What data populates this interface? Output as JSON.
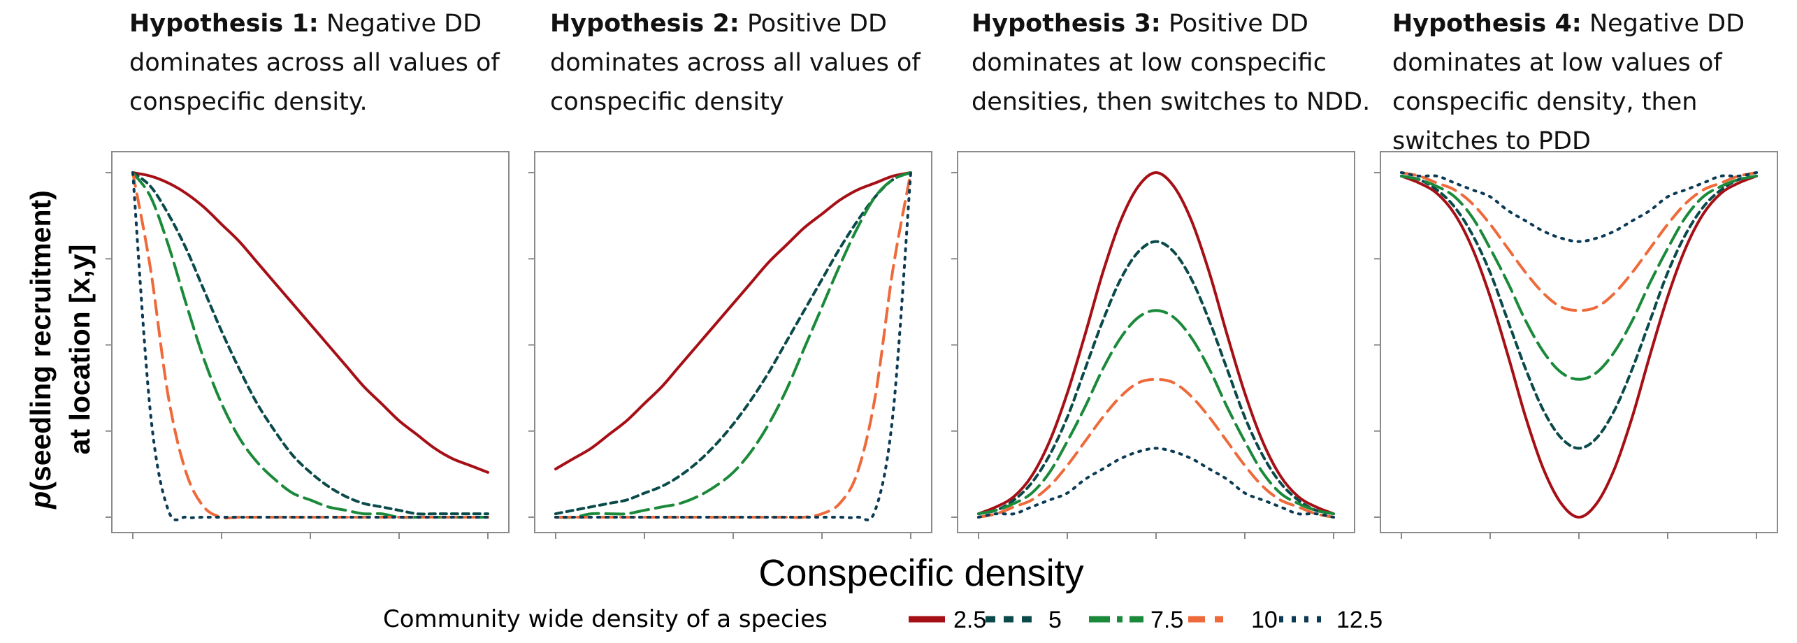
{
  "chart_data": [
    {
      "type": "line",
      "title_bold": "Hypothesis 1:",
      "title_rest": "Negative DD dominates across all values of conspecific density.",
      "xlabel": "Conspecific density",
      "ylabel_prefix": "p",
      "ylabel_rest": "(seedling recruitment)",
      "ylabel_line2": "at location [x,y]",
      "x": [
        0,
        0.05,
        0.1,
        0.15,
        0.2,
        0.25,
        0.3,
        0.35,
        0.4,
        0.45,
        0.5,
        0.55,
        0.6,
        0.65,
        0.7,
        0.75,
        0.8,
        0.85,
        0.9,
        0.95,
        1
      ],
      "series": [
        {
          "name": "2.5",
          "values": [
            1.0,
            0.99,
            0.97,
            0.94,
            0.9,
            0.85,
            0.8,
            0.74,
            0.68,
            0.62,
            0.56,
            0.5,
            0.44,
            0.38,
            0.33,
            0.28,
            0.24,
            0.2,
            0.17,
            0.15,
            0.13
          ]
        },
        {
          "name": "5",
          "values": [
            1.0,
            0.96,
            0.88,
            0.78,
            0.66,
            0.54,
            0.43,
            0.33,
            0.25,
            0.18,
            0.13,
            0.09,
            0.06,
            0.04,
            0.03,
            0.02,
            0.01,
            0.01,
            0.01,
            0.01,
            0.01
          ]
        },
        {
          "name": "7.5",
          "values": [
            1.0,
            0.93,
            0.79,
            0.62,
            0.46,
            0.33,
            0.23,
            0.16,
            0.11,
            0.07,
            0.05,
            0.03,
            0.02,
            0.01,
            0.01,
            0.0,
            0.0,
            0.0,
            0.0,
            0.0,
            0.0
          ]
        },
        {
          "name": "10",
          "values": [
            1.0,
            0.72,
            0.35,
            0.13,
            0.03,
            0.0,
            0.0,
            0.0,
            0.0,
            0.0,
            0.0,
            0.0,
            0.0,
            0.0,
            0.0,
            0.0,
            0.0,
            0.0,
            0.0,
            0.0,
            0.0
          ]
        },
        {
          "name": "12.5",
          "values": [
            1.0,
            0.3,
            0.02,
            0.0,
            0.0,
            0.0,
            0.0,
            0.0,
            0.0,
            0.0,
            0.0,
            0.0,
            0.0,
            0.0,
            0.0,
            0.0,
            0.0,
            0.0,
            0.0,
            0.0,
            0.0
          ]
        }
      ]
    },
    {
      "type": "line",
      "title_bold": "Hypothesis 2:",
      "title_rest": "Positive DD dominates across all values of conspecific density",
      "x": [
        0,
        0.05,
        0.1,
        0.15,
        0.2,
        0.25,
        0.3,
        0.35,
        0.4,
        0.45,
        0.5,
        0.55,
        0.6,
        0.65,
        0.7,
        0.75,
        0.8,
        0.85,
        0.9,
        0.95,
        1
      ],
      "series": [
        {
          "name": "2.5",
          "values": [
            0.14,
            0.17,
            0.2,
            0.24,
            0.28,
            0.33,
            0.38,
            0.44,
            0.5,
            0.56,
            0.62,
            0.68,
            0.74,
            0.79,
            0.84,
            0.88,
            0.92,
            0.95,
            0.97,
            0.99,
            1.0
          ]
        },
        {
          "name": "5",
          "values": [
            0.01,
            0.02,
            0.03,
            0.04,
            0.05,
            0.07,
            0.09,
            0.12,
            0.16,
            0.21,
            0.27,
            0.34,
            0.42,
            0.51,
            0.6,
            0.69,
            0.78,
            0.86,
            0.93,
            0.98,
            1.0
          ]
        },
        {
          "name": "7.5",
          "values": [
            0.0,
            0.0,
            0.01,
            0.01,
            0.01,
            0.02,
            0.03,
            0.04,
            0.06,
            0.09,
            0.13,
            0.19,
            0.27,
            0.37,
            0.49,
            0.61,
            0.73,
            0.84,
            0.93,
            0.98,
            1.0
          ]
        },
        {
          "name": "10",
          "values": [
            0.0,
            0.0,
            0.0,
            0.0,
            0.0,
            0.0,
            0.0,
            0.0,
            0.0,
            0.0,
            0.0,
            0.0,
            0.0,
            0.0,
            0.0,
            0.01,
            0.04,
            0.13,
            0.35,
            0.72,
            1.0
          ]
        },
        {
          "name": "12.5",
          "values": [
            0.0,
            0.0,
            0.0,
            0.0,
            0.0,
            0.0,
            0.0,
            0.0,
            0.0,
            0.0,
            0.0,
            0.0,
            0.0,
            0.0,
            0.0,
            0.0,
            0.0,
            0.0,
            0.02,
            0.3,
            1.0
          ]
        }
      ]
    },
    {
      "type": "line",
      "title_bold": "Hypothesis 3:",
      "title_rest": "Positive DD dominates at low conspecific densities, then switches to NDD.",
      "x": [
        0,
        0.05,
        0.1,
        0.15,
        0.2,
        0.25,
        0.3,
        0.35,
        0.4,
        0.45,
        0.5,
        0.55,
        0.6,
        0.65,
        0.7,
        0.75,
        0.8,
        0.85,
        0.9,
        0.95,
        1
      ],
      "series": [
        {
          "name": "2.5",
          "values": [
            0.01,
            0.03,
            0.06,
            0.12,
            0.22,
            0.36,
            0.53,
            0.71,
            0.86,
            0.96,
            1.0,
            0.96,
            0.86,
            0.71,
            0.53,
            0.36,
            0.22,
            0.12,
            0.06,
            0.03,
            0.01
          ]
        },
        {
          "name": "5",
          "values": [
            0.01,
            0.02,
            0.05,
            0.1,
            0.18,
            0.29,
            0.43,
            0.57,
            0.69,
            0.77,
            0.8,
            0.77,
            0.69,
            0.57,
            0.43,
            0.29,
            0.18,
            0.1,
            0.05,
            0.02,
            0.01
          ]
        },
        {
          "name": "7.5",
          "values": [
            0.01,
            0.02,
            0.04,
            0.07,
            0.13,
            0.22,
            0.32,
            0.43,
            0.52,
            0.58,
            0.6,
            0.58,
            0.52,
            0.43,
            0.32,
            0.22,
            0.13,
            0.07,
            0.04,
            0.02,
            0.01
          ]
        },
        {
          "name": "10",
          "values": [
            0.0,
            0.01,
            0.03,
            0.05,
            0.09,
            0.15,
            0.22,
            0.29,
            0.35,
            0.39,
            0.4,
            0.39,
            0.35,
            0.29,
            0.22,
            0.15,
            0.09,
            0.05,
            0.03,
            0.01,
            0.0
          ]
        },
        {
          "name": "12.5",
          "values": [
            0.0,
            0.01,
            0.01,
            0.03,
            0.05,
            0.07,
            0.11,
            0.14,
            0.17,
            0.19,
            0.2,
            0.19,
            0.17,
            0.14,
            0.11,
            0.07,
            0.05,
            0.03,
            0.01,
            0.01,
            0.0
          ]
        }
      ]
    },
    {
      "type": "line",
      "title_bold": "Hypothesis 4:",
      "title_rest": "Negative DD dominates at low values of conspecific density, then switches to PDD",
      "x": [
        0,
        0.05,
        0.1,
        0.15,
        0.2,
        0.25,
        0.3,
        0.35,
        0.4,
        0.45,
        0.5,
        0.55,
        0.6,
        0.65,
        0.7,
        0.75,
        0.8,
        0.85,
        0.9,
        0.95,
        1
      ],
      "series": [
        {
          "name": "2.5",
          "values": [
            0.99,
            0.97,
            0.94,
            0.88,
            0.78,
            0.64,
            0.47,
            0.29,
            0.14,
            0.04,
            0.0,
            0.04,
            0.14,
            0.29,
            0.47,
            0.64,
            0.78,
            0.88,
            0.94,
            0.97,
            0.99
          ]
        },
        {
          "name": "5",
          "values": [
            0.99,
            0.98,
            0.95,
            0.9,
            0.82,
            0.71,
            0.57,
            0.43,
            0.31,
            0.23,
            0.2,
            0.23,
            0.31,
            0.43,
            0.57,
            0.71,
            0.82,
            0.9,
            0.95,
            0.98,
            0.99
          ]
        },
        {
          "name": "7.5",
          "values": [
            0.99,
            0.98,
            0.96,
            0.93,
            0.87,
            0.78,
            0.68,
            0.57,
            0.48,
            0.42,
            0.4,
            0.42,
            0.48,
            0.57,
            0.68,
            0.78,
            0.87,
            0.93,
            0.96,
            0.98,
            0.99
          ]
        },
        {
          "name": "10",
          "values": [
            1.0,
            0.99,
            0.97,
            0.95,
            0.91,
            0.85,
            0.78,
            0.71,
            0.65,
            0.61,
            0.6,
            0.61,
            0.65,
            0.71,
            0.78,
            0.85,
            0.91,
            0.95,
            0.97,
            0.99,
            1.0
          ]
        },
        {
          "name": "12.5",
          "values": [
            1.0,
            0.99,
            0.99,
            0.97,
            0.95,
            0.93,
            0.89,
            0.86,
            0.83,
            0.81,
            0.8,
            0.81,
            0.83,
            0.86,
            0.89,
            0.93,
            0.95,
            0.97,
            0.99,
            0.99,
            1.0
          ]
        }
      ]
    }
  ],
  "legend": {
    "title": "Community wide density of a species",
    "entries": [
      {
        "label": "2.5",
        "color": "#a50f15",
        "dash": "solid"
      },
      {
        "label": "5",
        "color": "#0b4a4a",
        "dash": "short-dash"
      },
      {
        "label": "7.5",
        "color": "#1a8a3a",
        "dash": "long-dash"
      },
      {
        "label": "10",
        "color": "#ee6a3a",
        "dash": "dash"
      },
      {
        "label": "12.5",
        "color": "#0b3a55",
        "dash": "dot"
      }
    ]
  }
}
